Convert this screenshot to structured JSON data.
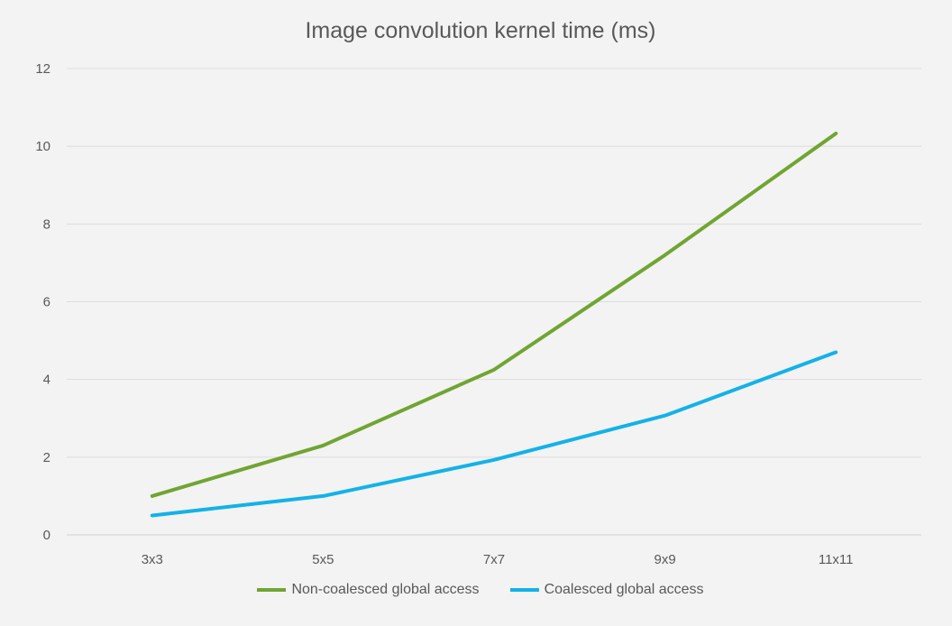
{
  "chart_data": {
    "type": "line",
    "title": "Image convolution kernel time (ms)",
    "categories": [
      "3x3",
      "5x5",
      "7x7",
      "9x9",
      "11x11"
    ],
    "series": [
      {
        "name": "Non-coalesced global access",
        "color": "#70a532",
        "values": [
          1.0,
          2.3,
          4.25,
          7.2,
          10.33
        ]
      },
      {
        "name": "Coalesced global access",
        "color": "#13b2e8",
        "values": [
          0.5,
          1.0,
          1.93,
          3.07,
          4.7
        ]
      }
    ],
    "ylim": [
      0,
      12
    ],
    "yticks": [
      "0",
      "2",
      "4",
      "6",
      "8",
      "10",
      "12"
    ],
    "grid": true,
    "legend_position": "bottom"
  }
}
